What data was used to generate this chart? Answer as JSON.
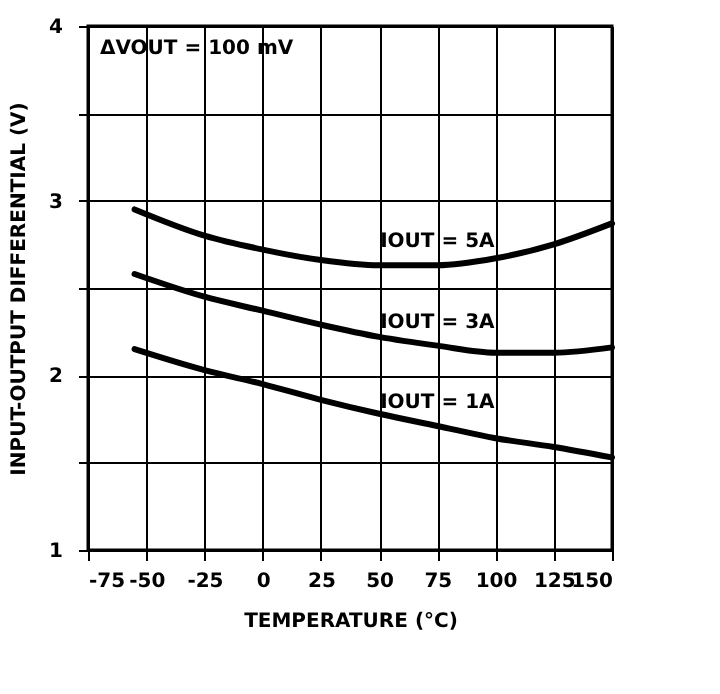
{
  "chart_data": {
    "type": "line",
    "xlabel": "TEMPERATURE (°C)",
    "ylabel": "INPUT-OUTPUT DIFFERENTIAL (V)",
    "x": [
      -55,
      -25,
      0,
      25,
      50,
      75,
      100,
      125,
      150
    ],
    "series": [
      {
        "name": "IOUT = 5A",
        "color": "#000000",
        "values": [
          2.95,
          2.8,
          2.72,
          2.66,
          2.63,
          2.63,
          2.67,
          2.75,
          2.87
        ]
      },
      {
        "name": "IOUT = 3A",
        "color": "#000000",
        "values": [
          2.58,
          2.45,
          2.37,
          2.29,
          2.22,
          2.17,
          2.13,
          2.13,
          2.16
        ]
      },
      {
        "name": "IOUT = 1A",
        "color": "#000000",
        "values": [
          2.15,
          2.03,
          1.95,
          1.86,
          1.78,
          1.71,
          1.64,
          1.59,
          1.53
        ]
      }
    ],
    "xlim": [
      -75,
      150
    ],
    "xticks": [
      -75,
      -50,
      -25,
      0,
      25,
      50,
      75,
      100,
      125,
      150
    ],
    "ylim": [
      1,
      4
    ],
    "yticks": [
      1,
      {
        "value": 1.5,
        "label": null
      },
      2,
      {
        "value": 2.5,
        "label": null
      },
      3,
      {
        "value": 3.5,
        "label": null
      },
      4
    ],
    "grid": true,
    "legend": false,
    "marker": "none",
    "line_style": "solid",
    "annotations": [
      "ΔVOUT = 100 mV"
    ]
  }
}
